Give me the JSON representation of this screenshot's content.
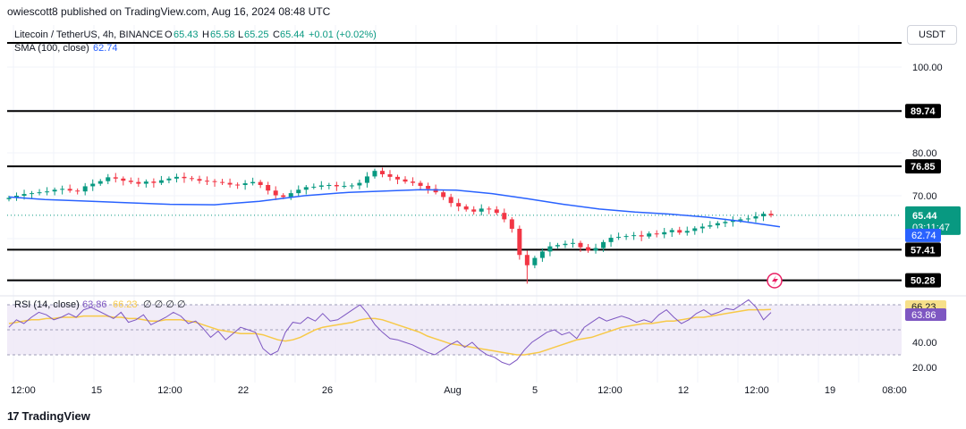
{
  "header": {
    "publisher": "owiescott8 published on TradingView.com, Aug 16, 2024 08:48 UTC",
    "symbol": "Litecoin / TetherUS, 4h, BINANCE",
    "o_label": "O",
    "o_val": "65.43",
    "h_label": "H",
    "h_val": "65.58",
    "l_label": "L",
    "l_val": "65.25",
    "c_label": "C",
    "c_val": "65.44",
    "change": "+0.01 (+0.02%)",
    "sma_label": "SMA (100, close)",
    "sma_val": "62.74",
    "rsi_label": "RSI (14, close)",
    "rsi_val1": "63.86",
    "rsi_val2": "66.23",
    "rsi_extra": "∅ ∅ ∅ ∅",
    "currency": "USDT"
  },
  "footer": {
    "brand": "TradingView",
    "logo_icon": "tradingview-logo-icon"
  },
  "colors": {
    "up": "#089981",
    "down": "#f23645",
    "sma": "#2962ff",
    "rsi": "#7e57c2",
    "rsi_ma": "#f7c948",
    "rsi_band": "#ede7f6",
    "level": "#000000",
    "grid": "#f0f3fa"
  },
  "chart_data": [
    {
      "type": "candlestick",
      "title": "Litecoin / TetherUS, 4h, BINANCE",
      "y_ticks": [
        "100.00",
        "80.00",
        "70.00"
      ],
      "x_ticks": [
        "12:00",
        "15",
        "12:00",
        "22",
        "26",
        "Aug",
        "5",
        "12:00",
        "12",
        "12:00",
        "19",
        "08:00"
      ],
      "horizontal_levels": [
        {
          "value": 89.74,
          "label": "89.74"
        },
        {
          "value": 76.85,
          "label": "76.85"
        },
        {
          "value": 57.41,
          "label": "57.41"
        },
        {
          "value": 50.28,
          "label": "50.28"
        }
      ],
      "top_line_value": 104.5,
      "last_price": {
        "value": 65.44,
        "label": "65.44",
        "countdown": "03:11:47"
      },
      "sma_last": {
        "value": 62.74,
        "label": "62.74"
      },
      "close_series_approx": [
        69.5,
        70.0,
        70.4,
        70.6,
        70.8,
        71.0,
        71.4,
        71.6,
        71.2,
        71.0,
        72.2,
        72.8,
        73.4,
        74.3,
        74.0,
        73.5,
        73.2,
        72.8,
        73.3,
        73.0,
        73.6,
        74.0,
        74.4,
        74.1,
        73.9,
        73.5,
        73.4,
        73.2,
        73.0,
        72.6,
        72.5,
        72.9,
        73.2,
        72.5,
        71.2,
        70.1,
        69.7,
        70.6,
        71.4,
        72.0,
        72.1,
        72.4,
        72.5,
        72.2,
        72.3,
        72.4,
        73.0,
        74.5,
        75.8,
        75.0,
        74.4,
        73.8,
        73.3,
        73.0,
        72.3,
        71.6,
        70.8,
        69.7,
        68.3,
        67.5,
        66.8,
        66.3,
        67.0,
        66.8,
        66.0,
        64.5,
        62.3,
        56.2,
        53.8,
        55.5,
        57.0,
        58.2,
        58.5,
        58.8,
        59.0,
        58.0,
        57.2,
        57.8,
        59.2,
        60.2,
        60.4,
        60.6,
        60.8,
        60.5,
        61.2,
        61.0,
        61.5,
        62.0,
        61.4,
        61.8,
        62.4,
        62.8,
        63.1,
        63.6,
        63.9,
        64.2,
        64.5,
        64.7,
        65.2,
        65.8,
        65.44
      ],
      "sma_points": [
        [
          0,
          69.7
        ],
        [
          40,
          69.1
        ],
        [
          80,
          68.8
        ],
        [
          130,
          68.4
        ],
        [
          180,
          68.0
        ],
        [
          230,
          67.9
        ],
        [
          280,
          68.7
        ],
        [
          330,
          70.0
        ],
        [
          380,
          70.8
        ],
        [
          420,
          71.1
        ],
        [
          460,
          71.4
        ],
        [
          500,
          71.3
        ],
        [
          540,
          70.5
        ],
        [
          580,
          69.3
        ],
        [
          620,
          68.0
        ],
        [
          660,
          66.9
        ],
        [
          700,
          66.2
        ],
        [
          740,
          65.7
        ],
        [
          780,
          65.0
        ],
        [
          820,
          64.0
        ],
        [
          862,
          62.74
        ]
      ]
    },
    {
      "type": "line",
      "title": "RSI (14, close)",
      "y_ticks": [
        "66.23",
        "63.86",
        "40.00",
        "20.00"
      ],
      "upper_band": 70,
      "lower_band": 30,
      "mid_line": 50,
      "rsi_series_approx": [
        52,
        58,
        55,
        60,
        64,
        62,
        58,
        60,
        63,
        60,
        66,
        68,
        65,
        62,
        59,
        64,
        56,
        58,
        62,
        54,
        57,
        60,
        64,
        61,
        55,
        57,
        51,
        44,
        49,
        42,
        47,
        52,
        50,
        48,
        35,
        30,
        33,
        48,
        56,
        55,
        60,
        57,
        63,
        57,
        58,
        62,
        66,
        70,
        63,
        54,
        48,
        43,
        42,
        40,
        38,
        35,
        32,
        30,
        34,
        38,
        41,
        36,
        40,
        34,
        30,
        28,
        24,
        22,
        26,
        34,
        40,
        44,
        48,
        50,
        46,
        48,
        43,
        52,
        56,
        60,
        57,
        59,
        61,
        59,
        56,
        58,
        56,
        62,
        66,
        60,
        55,
        58,
        63,
        66,
        62,
        64,
        67,
        66,
        70,
        74,
        68,
        58,
        63.86
      ],
      "rsi_ma_series_approx": [
        55,
        56,
        57,
        58,
        58,
        59,
        59,
        60,
        60,
        60,
        61,
        61,
        61,
        61,
        60,
        60,
        59,
        59,
        58,
        57,
        57,
        58,
        58,
        58,
        57,
        56,
        54,
        52,
        50,
        49,
        48,
        47,
        47,
        47,
        46,
        44,
        42,
        41,
        42,
        44,
        47,
        50,
        52,
        53,
        54,
        55,
        56,
        58,
        59,
        59,
        58,
        56,
        54,
        52,
        50,
        48,
        45,
        43,
        41,
        39,
        38,
        37,
        36,
        35,
        34,
        33,
        32,
        31,
        30,
        30,
        31,
        32,
        34,
        36,
        38,
        40,
        42,
        43,
        44,
        46,
        48,
        50,
        52,
        53,
        54,
        55,
        55,
        56,
        57,
        57,
        58,
        59,
        60,
        60,
        61,
        62,
        63,
        64,
        65,
        66,
        66,
        66,
        66.23
      ]
    }
  ]
}
